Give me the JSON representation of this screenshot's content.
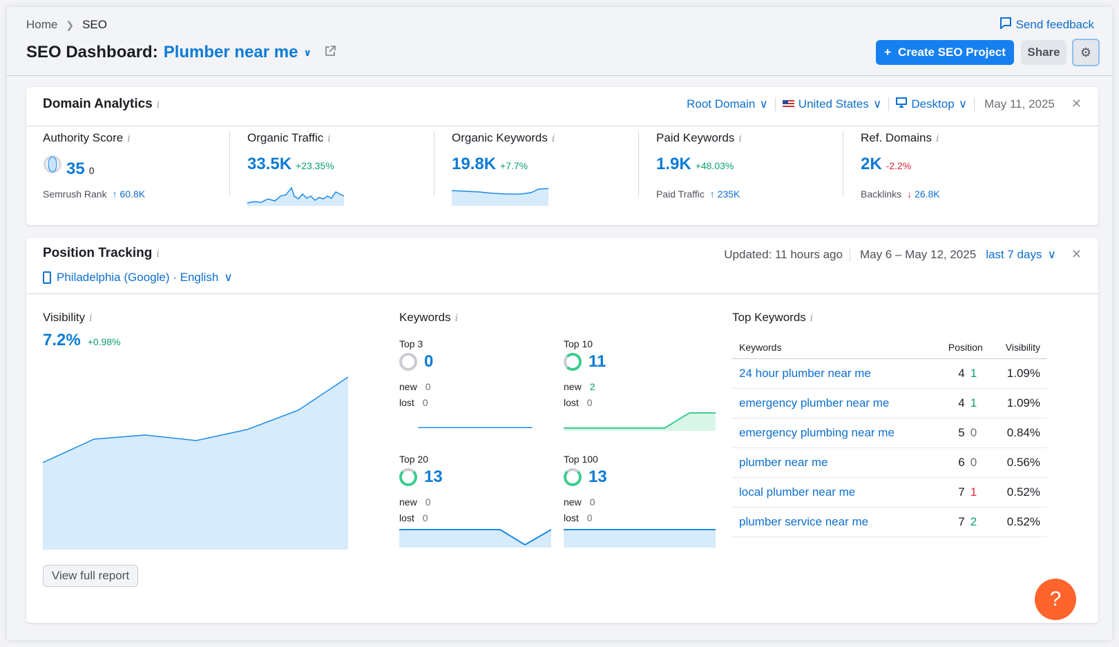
{
  "breadcrumb": {
    "home": "Home",
    "current": "SEO"
  },
  "header": {
    "title_prefix": "SEO Dashboard:",
    "project": "Plumber near me",
    "feedback": "Send feedback",
    "create_button": "Create SEO Project",
    "share_button": "Share"
  },
  "domain_analytics": {
    "title": "Domain Analytics",
    "filters": {
      "scope": "Root Domain",
      "country": "United States",
      "device": "Desktop",
      "date": "May 11, 2025"
    },
    "metrics": [
      {
        "label": "Authority Score",
        "value": "35",
        "delta": "0",
        "sub_label": "Semrush Rank",
        "sub_value": "60.8K",
        "sub_arrow": "↑"
      },
      {
        "label": "Organic Traffic",
        "value": "33.5K",
        "delta": "+23.35%"
      },
      {
        "label": "Organic Keywords",
        "value": "19.8K",
        "delta": "+7.7%"
      },
      {
        "label": "Paid Keywords",
        "value": "1.9K",
        "delta": "+48.03%",
        "sub_label": "Paid Traffic",
        "sub_value": "235K",
        "sub_arrow": "↑"
      },
      {
        "label": "Ref. Domains",
        "value": "2K",
        "delta": "-2.2%",
        "sub_label": "Backlinks",
        "sub_value": "26.8K",
        "sub_arrow": "↓"
      }
    ]
  },
  "position_tracking": {
    "title": "Position Tracking",
    "updated": "Updated: 11 hours ago",
    "range": "May 6 – May 12, 2025",
    "period": "last 7 days",
    "location": "Philadelphia (Google) · English",
    "visibility": {
      "title": "Visibility",
      "value": "7.2%",
      "delta": "+0.98%"
    },
    "view_full": "View full report",
    "keywords": {
      "title": "Keywords",
      "new_label": "new",
      "lost_label": "lost",
      "blocks": [
        {
          "label": "Top 3",
          "value": "0",
          "new": "0",
          "lost": "0"
        },
        {
          "label": "Top 10",
          "value": "11",
          "new": "2",
          "lost": "0"
        },
        {
          "label": "Top 20",
          "value": "13",
          "new": "0",
          "lost": "0"
        },
        {
          "label": "Top 100",
          "value": "13",
          "new": "0",
          "lost": "0"
        }
      ]
    },
    "top_keywords": {
      "title": "Top Keywords",
      "columns": [
        "Keywords",
        "Position",
        "Visibility"
      ],
      "rows": [
        {
          "keyword": "24 hour plumber near me",
          "position": "4",
          "change": "1",
          "visibility": "1.09%"
        },
        {
          "keyword": "emergency plumber near me",
          "position": "4",
          "change": "1",
          "visibility": "1.09%"
        },
        {
          "keyword": "emergency plumbing near me",
          "position": "5",
          "change": "0",
          "visibility": "0.84%"
        },
        {
          "keyword": "plumber near me",
          "position": "6",
          "change": "0",
          "visibility": "0.56%"
        },
        {
          "keyword": "local plumber near me",
          "position": "7",
          "change": "1",
          "visibility": "0.52%"
        },
        {
          "keyword": "plumber service near me",
          "position": "7",
          "change": "2",
          "visibility": "0.52%"
        }
      ]
    }
  },
  "help_button": "?",
  "colors": {
    "accent": "#1680f0",
    "link": "#0d6fcf",
    "positive": "#099f6f",
    "negative": "#e0243a",
    "help": "#ff642d"
  }
}
